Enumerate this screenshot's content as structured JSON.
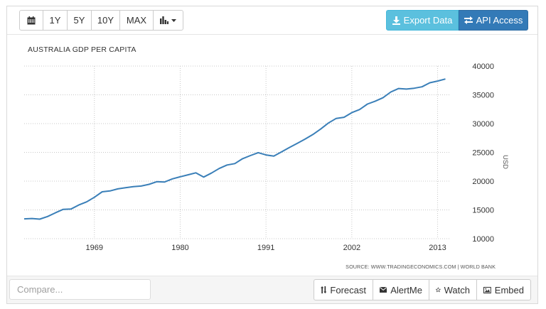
{
  "toolbar": {
    "range_buttons": [
      "1Y",
      "5Y",
      "10Y",
      "MAX"
    ],
    "export_label": "Export Data",
    "api_label": "API Access"
  },
  "chart_data": {
    "type": "line",
    "title": "AUSTRALIA GDP PER CAPITA",
    "ylabel": "USD",
    "xlabel": "",
    "x_ticks": [
      1969,
      1980,
      1991,
      2002,
      2013
    ],
    "y_ticks": [
      10000,
      15000,
      20000,
      25000,
      30000,
      35000,
      40000
    ],
    "ylim": [
      10000,
      40000
    ],
    "xlim": [
      1960,
      2014.5
    ],
    "grid": true,
    "line_color": "#3a7fb8",
    "series": [
      {
        "x": [
          1960,
          1961,
          1962,
          1963,
          1964,
          1965,
          1966,
          1967,
          1968,
          1969,
          1970,
          1971,
          1972,
          1973,
          1974,
          1975,
          1976,
          1977,
          1978,
          1979,
          1980,
          1981,
          1982,
          1983,
          1984,
          1985,
          1986,
          1987,
          1988,
          1989,
          1990,
          1991,
          1992,
          1993,
          1994,
          1995,
          1996,
          1997,
          1998,
          1999,
          2000,
          2001,
          2002,
          2003,
          2004,
          2005,
          2006,
          2007,
          2008,
          2009,
          2010,
          2011,
          2012,
          2013,
          2014
        ],
        "values": [
          13450,
          13500,
          13400,
          13850,
          14500,
          15100,
          15150,
          15850,
          16400,
          17200,
          18150,
          18300,
          18650,
          18850,
          19050,
          19150,
          19450,
          19900,
          19850,
          20400,
          20750,
          21100,
          21450,
          20700,
          21400,
          22200,
          22800,
          23050,
          23900,
          24450,
          24950,
          24550,
          24350,
          25100,
          25850,
          26550,
          27300,
          28100,
          29050,
          30100,
          30900,
          31100,
          31900,
          32450,
          33400,
          33900,
          34500,
          35500,
          36100,
          36000,
          36150,
          36400,
          37100,
          37400,
          37750
        ]
      }
    ],
    "source": "SOURCE: WWW.TRADINGECONOMICS.COM | WORLD BANK"
  },
  "bottom": {
    "compare_placeholder": "Compare...",
    "actions": [
      "Forecast",
      "AlertMe",
      "Watch",
      "Embed"
    ]
  },
  "icons": [
    "calendar-icon",
    "bar-chart-icon",
    "caret-down-icon",
    "download-icon",
    "exchange-icon",
    "sort-icon",
    "envelope-icon",
    "star-icon",
    "picture-icon"
  ]
}
